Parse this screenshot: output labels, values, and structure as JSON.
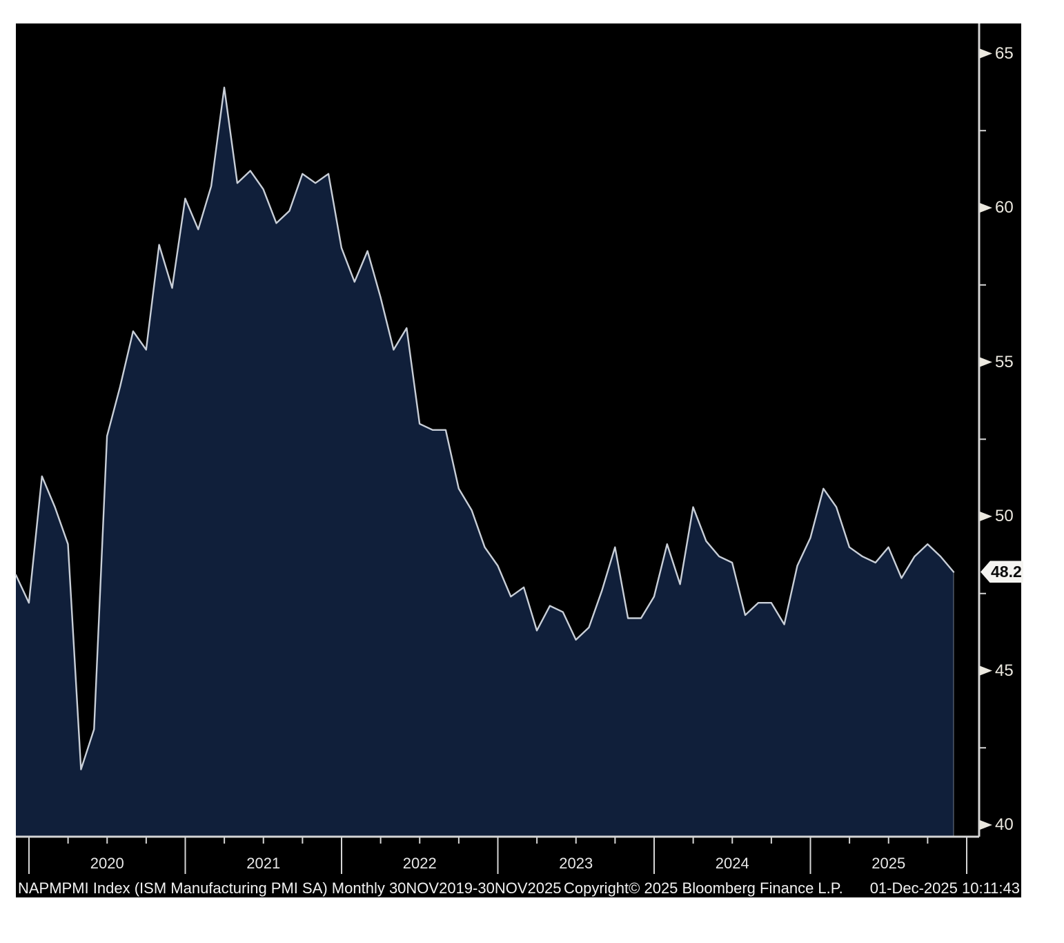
{
  "chart_data": {
    "type": "area",
    "title": "NAPMPMI Index (ISM Manufacturing PMI SA)",
    "frequency": "Monthly",
    "period": "30NOV2019-30NOV2025",
    "xlabel": "",
    "ylabel": "",
    "ylim": [
      39.6,
      66
    ],
    "grid": "off",
    "legend_position": "none",
    "x": [
      "2019-11",
      "2019-12",
      "2020-01",
      "2020-02",
      "2020-03",
      "2020-04",
      "2020-05",
      "2020-06",
      "2020-07",
      "2020-08",
      "2020-09",
      "2020-10",
      "2020-11",
      "2020-12",
      "2021-01",
      "2021-02",
      "2021-03",
      "2021-04",
      "2021-05",
      "2021-06",
      "2021-07",
      "2021-08",
      "2021-09",
      "2021-10",
      "2021-11",
      "2021-12",
      "2022-01",
      "2022-02",
      "2022-03",
      "2022-04",
      "2022-05",
      "2022-06",
      "2022-07",
      "2022-08",
      "2022-09",
      "2022-10",
      "2022-11",
      "2022-12",
      "2023-01",
      "2023-02",
      "2023-03",
      "2023-04",
      "2023-05",
      "2023-06",
      "2023-07",
      "2023-08",
      "2023-09",
      "2023-10",
      "2023-11",
      "2023-12",
      "2024-01",
      "2024-02",
      "2024-03",
      "2024-04",
      "2024-05",
      "2024-06",
      "2024-07",
      "2024-08",
      "2024-09",
      "2024-10",
      "2024-11",
      "2024-12",
      "2025-01",
      "2025-02",
      "2025-03",
      "2025-04",
      "2025-05",
      "2025-06",
      "2025-07",
      "2025-08",
      "2025-09",
      "2025-10",
      "2025-11"
    ],
    "values": [
      48.1,
      47.2,
      51.3,
      50.3,
      49.1,
      41.8,
      43.1,
      52.6,
      54.2,
      56.0,
      55.4,
      58.8,
      57.4,
      60.3,
      59.3,
      60.7,
      63.9,
      60.8,
      61.2,
      60.6,
      59.5,
      59.9,
      61.1,
      60.8,
      61.1,
      58.7,
      57.6,
      58.6,
      57.1,
      55.4,
      56.1,
      53.0,
      52.8,
      52.8,
      50.9,
      50.2,
      49.0,
      48.4,
      47.4,
      47.7,
      46.3,
      47.1,
      46.9,
      46.0,
      46.4,
      47.6,
      49.0,
      46.7,
      46.7,
      47.4,
      49.1,
      47.8,
      50.3,
      49.2,
      48.7,
      48.5,
      46.8,
      47.2,
      47.2,
      46.5,
      48.4,
      49.3,
      50.9,
      50.3,
      49.0,
      48.7,
      48.5,
      49.0,
      48.0,
      48.7,
      49.1,
      48.7,
      48.2
    ],
    "y_major_ticks": [
      65,
      60,
      55,
      50,
      45,
      40
    ],
    "y_major_tick_labels": [
      "65",
      "60",
      "55",
      "50",
      "45",
      "40"
    ],
    "y_minor_ticks": [
      62.5,
      57.5,
      52.5,
      47.5,
      42.5
    ],
    "x_year_labels": [
      "2020",
      "2021",
      "2022",
      "2023",
      "2024",
      "2025"
    ],
    "last_value": 48.2,
    "last_value_label": "48.2",
    "colors": {
      "page_bg": "#ffffff",
      "panel_bg": "#000000",
      "fill": "#101f3a",
      "line": "#c9cfd8",
      "axis": "#d6d6d6",
      "tick_label": "#ece9e0",
      "year_label": "#e8e8e8",
      "footer_text": "#f2f2f2",
      "flag_bg": "#f5f4f1",
      "flag_text": "#0a0a0a"
    }
  },
  "footer": {
    "left": "NAPMPMI Index (ISM Manufacturing PMI SA) Monthly 30NOV2019-30NOV2025",
    "center": "Copyright© 2025 Bloomberg Finance L.P.",
    "right": "01-Dec-2025 10:11:43"
  }
}
